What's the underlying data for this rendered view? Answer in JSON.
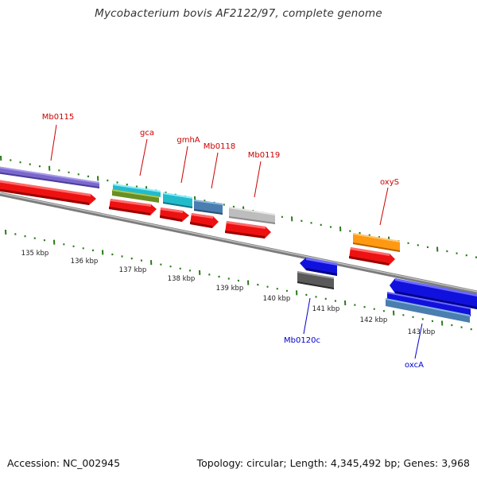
{
  "title": "Mycobacterium bovis AF2122/97, complete genome",
  "footer": {
    "accession": "Accession: NC_002945",
    "topology": "Topology: circular; Length: 4,345,492 bp; Genes: 3,968"
  },
  "ruler": {
    "labels": [
      "135 kbp",
      "136 kbp",
      "137 kbp",
      "138 kbp",
      "139 kbp",
      "140 kbp",
      "141 kbp",
      "142 kbp",
      "143 kbp"
    ]
  },
  "gene_labels": {
    "forward": [
      "Mb0115",
      "gca",
      "gmhA",
      "Mb0118",
      "Mb0119",
      "oxyS"
    ],
    "reverse": [
      "Mb0120c",
      "oxcA"
    ]
  },
  "colors": {
    "forward_label": "#cc0000",
    "reverse_label": "#0000cc",
    "tick": "#2a7a1a",
    "backbone": "#888888",
    "cds": "#ee1111",
    "reverse_cds": "#1111dd"
  }
}
